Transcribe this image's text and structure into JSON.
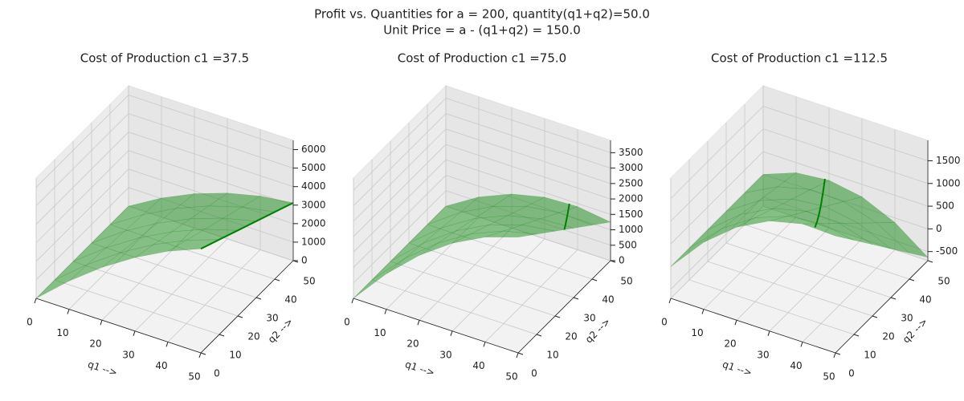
{
  "suptitle": [
    "Profit vs. Quantities for a = 200, quantity(q1+q2)=50.0",
    "Unit Price = a - (q1+q2) = 150.0"
  ],
  "chart_data": [
    {
      "type": "surface",
      "title": "Cost of Production c1 =37.5",
      "xlabel": "q1 -->",
      "ylabel": "q2 -->",
      "color": "green",
      "x": [
        0,
        10,
        20,
        30,
        40,
        50
      ],
      "y": [
        0,
        10,
        20,
        30,
        40,
        50
      ],
      "z": [
        [
          0,
          1525,
          2850,
          3975,
          4900,
          5625
        ],
        [
          0,
          1425,
          2650,
          3675,
          4500,
          5125
        ],
        [
          0,
          1325,
          2450,
          3375,
          4100,
          4625
        ],
        [
          0,
          1225,
          2250,
          3075,
          3700,
          4125
        ],
        [
          0,
          1125,
          2050,
          2775,
          3300,
          3625
        ],
        [
          0,
          1025,
          1850,
          2475,
          2900,
          3125
        ]
      ],
      "xlim": [
        0,
        50
      ],
      "ylim": [
        0,
        50
      ],
      "zlim": [
        0,
        6500
      ],
      "xticks": [
        0,
        10,
        20,
        30,
        40,
        50
      ],
      "yticks": [
        0,
        10,
        20,
        30,
        40,
        50
      ],
      "zticks": [
        0,
        1000,
        2000,
        3000,
        4000,
        5000,
        6000
      ],
      "line": {
        "color": "green",
        "x": [
          50,
          50,
          50,
          50,
          50,
          50
        ],
        "y": [
          0,
          10,
          20,
          30,
          40,
          50
        ],
        "z": [
          5625,
          5125,
          4625,
          4125,
          3625,
          3125
        ]
      }
    },
    {
      "type": "surface",
      "title": "Cost of Production c1 =75.0",
      "xlabel": "q1 -->",
      "ylabel": "q2 -->",
      "color": "green",
      "x": [
        0,
        10,
        20,
        30,
        40,
        50
      ],
      "y": [
        0,
        10,
        20,
        30,
        40,
        50
      ],
      "z": [
        [
          0,
          1150,
          2100,
          2850,
          3400,
          3750
        ],
        [
          0,
          1050,
          1900,
          2550,
          3000,
          3250
        ],
        [
          0,
          950,
          1700,
          2250,
          2600,
          2750
        ],
        [
          0,
          850,
          1500,
          1950,
          2200,
          2250
        ],
        [
          0,
          750,
          1300,
          1650,
          1800,
          1750
        ],
        [
          0,
          650,
          1100,
          1350,
          1400,
          1250
        ]
      ],
      "xlim": [
        0,
        50
      ],
      "ylim": [
        0,
        50
      ],
      "zlim": [
        0,
        3900
      ],
      "xticks": [
        0,
        10,
        20,
        30,
        40,
        50
      ],
      "yticks": [
        0,
        10,
        20,
        30,
        40,
        50
      ],
      "zticks": [
        0,
        500,
        1000,
        1500,
        2000,
        2500,
        3000,
        3500
      ],
      "line": {
        "color": "green",
        "x": [
          50,
          47.5,
          42.5,
          37.5
        ],
        "y": [
          25,
          30,
          40,
          50
        ],
        "z": [
          2500,
          2256.25,
          1806.25,
          1406.25
        ]
      }
    },
    {
      "type": "surface",
      "title": "Cost of Production c1 =112.5",
      "xlabel": "q1 -->",
      "ylabel": "q2 -->",
      "color": "green",
      "x": [
        0,
        10,
        20,
        30,
        40,
        50
      ],
      "y": [
        0,
        10,
        20,
        30,
        40,
        50
      ],
      "z": [
        [
          0,
          775,
          1350,
          1725,
          1900,
          1875
        ],
        [
          0,
          675,
          1150,
          1425,
          1500,
          1375
        ],
        [
          0,
          575,
          950,
          1125,
          1100,
          875
        ],
        [
          0,
          475,
          750,
          825,
          700,
          375
        ],
        [
          0,
          375,
          550,
          525,
          300,
          -125
        ],
        [
          0,
          275,
          350,
          225,
          -100,
          -625
        ]
      ],
      "xlim": [
        0,
        50
      ],
      "ylim": [
        0,
        50
      ],
      "zlim": [
        -700,
        1950
      ],
      "xticks": [
        0,
        10,
        20,
        30,
        40,
        50
      ],
      "yticks": [
        0,
        10,
        20,
        30,
        40,
        50
      ],
      "zticks": [
        -500,
        0,
        500,
        1000,
        1500
      ],
      "line": {
        "color": "green",
        "x": [
          43.75,
          38.75,
          33.75,
          28.75,
          23.75,
          18.75
        ],
        "y": [
          0,
          10,
          20,
          30,
          40,
          50
        ],
        "z": [
          1914.06,
          1501.56,
          1139.06,
          826.56,
          564.06,
          351.56
        ]
      }
    }
  ]
}
